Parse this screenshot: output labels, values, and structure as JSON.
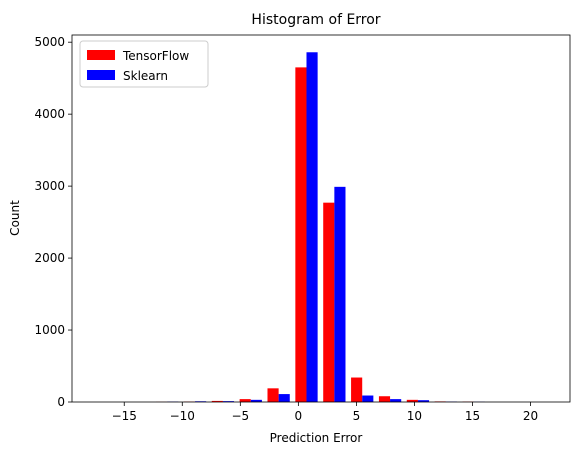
{
  "chart_data": {
    "type": "bar",
    "title": "Histogram of Error",
    "xlabel": "Prediction Error",
    "ylabel": "Count",
    "xlim": [
      -19.5,
      23.4
    ],
    "ylim": [
      0,
      5100
    ],
    "xticks": [
      -15,
      -10,
      -5,
      0,
      5,
      10,
      15,
      20
    ],
    "yticks": [
      0,
      1000,
      2000,
      3000,
      4000,
      5000
    ],
    "legend_position": "top-left",
    "bin_width": 2.4,
    "bin_centers": [
      -16.1,
      -13.7,
      -11.3,
      -8.9,
      -6.5,
      -4.1,
      -1.7,
      0.7,
      3.1,
      5.5,
      7.9,
      10.3,
      12.7,
      15.1,
      17.5,
      19.9
    ],
    "series": [
      {
        "name": "TensorFlow",
        "color": "#ff0000",
        "values": [
          0,
          0,
          2,
          5,
          15,
          40,
          190,
          4650,
          2770,
          340,
          80,
          30,
          8,
          5,
          0,
          0
        ]
      },
      {
        "name": "Sklearn",
        "color": "#0000ff",
        "values": [
          0,
          0,
          5,
          10,
          12,
          30,
          110,
          4860,
          2990,
          90,
          40,
          25,
          5,
          3,
          0,
          0
        ]
      }
    ]
  }
}
